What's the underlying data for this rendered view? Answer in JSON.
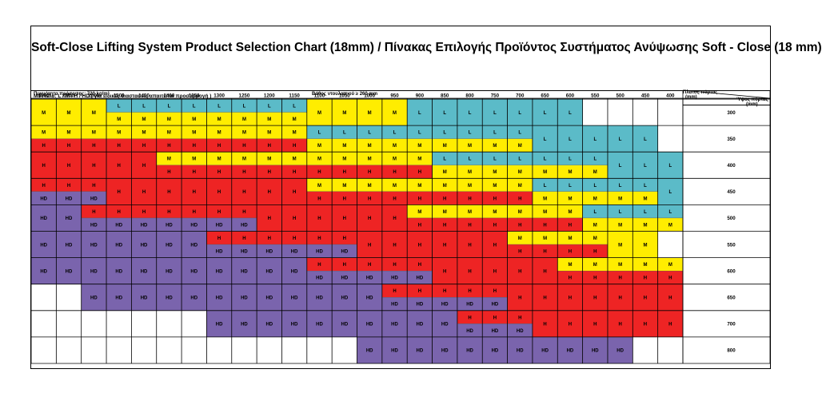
{
  "document": {
    "title": "Soft-Close Lifting System Product Selection Chart (18mm)  /  Πίνακας Επιλογής Προϊόντος Συστήματος Ανύψωσης Soft - Close (18 mm)",
    "models_note": "Μοντέλα: L / M / H / HD ( για ειδικές διαστασεις απαιτείται προσαρμογή )",
    "density_label": "Πυκνότητα πρόσοψης: 720 kg/m³",
    "depth_label": "Βάθος ντουλαπιού ≥ 260 mm",
    "width_label": "Πλατος πόρτας (mm)",
    "height_label": "Ύψος πόρτας (mm)",
    "width_label_line1": "Πλατος πόρτας",
    "width_label_line2": "(mm)",
    "height_label_line1": "Ύψος πόρτας",
    "height_label_line2": "(mm)"
  },
  "colors": {
    "L": "#5bbbc8",
    "M": "#ffed00",
    "H": "#ee2424",
    "HD": "#7a64ad",
    "empty": "#ffffff"
  },
  "chart_data": {
    "type": "table",
    "columns": [
      "1800",
      "1700",
      "1600",
      "1500",
      "1450",
      "1400",
      "1350",
      "1300",
      "1250",
      "1200",
      "1150",
      "1100",
      "1050",
      "1000",
      "950",
      "900",
      "850",
      "800",
      "750",
      "700",
      "650",
      "600",
      "550",
      "500",
      "450",
      "400"
    ],
    "rows": [
      "300",
      "350",
      "400",
      "450",
      "500",
      "550",
      "600",
      "650",
      "700",
      "800"
    ],
    "cells": [
      [
        "M",
        "M",
        "M",
        "L/M",
        "L/M",
        "L/M",
        "L/M",
        "L/M",
        "L/M",
        "L/M",
        "L/M",
        "M",
        "M",
        "M",
        "M",
        "L",
        "L",
        "L",
        "L",
        "L",
        "L",
        "L",
        "",
        "",
        "",
        ""
      ],
      [
        "M/H",
        "M/H",
        "M/H",
        "M/H",
        "M/H",
        "M/H",
        "M/H",
        "M/H",
        "M/H",
        "M/H",
        "M/H",
        "L/M",
        "L/M",
        "L/M",
        "L/M",
        "L/M",
        "L/M",
        "L/M",
        "L/M",
        "L/M",
        "L",
        "L",
        "L",
        "L",
        "L",
        ""
      ],
      [
        "H",
        "H",
        "H",
        "H",
        "H",
        "M/H",
        "M/H",
        "M/H",
        "M/H",
        "M/H",
        "M/H",
        "M/H",
        "M/H",
        "M/H",
        "M/H",
        "M/H",
        "L/M",
        "L/M",
        "L/M",
        "L/M",
        "L/M",
        "L/M",
        "L/M",
        "L",
        "L",
        "L"
      ],
      [
        "H/HD",
        "H/HD",
        "H/HD",
        "H",
        "H",
        "H",
        "H",
        "H",
        "H",
        "H",
        "H",
        "M/H",
        "M/H",
        "M/H",
        "M/H",
        "M/H",
        "M/H",
        "M/H",
        "M/H",
        "M/H",
        "L/M",
        "L/M",
        "L/M",
        "L/M",
        "L/M",
        "L"
      ],
      [
        "HD",
        "HD",
        "H/HD",
        "H/HD",
        "H/HD",
        "H/HD",
        "H/HD",
        "H/HD",
        "H/HD",
        "H",
        "H",
        "H",
        "H",
        "H",
        "H",
        "M/H",
        "M/H",
        "M/H",
        "M/H",
        "M/H",
        "M/H",
        "M/H",
        "L/M",
        "L/M",
        "L/M",
        "L/M"
      ],
      [
        "HD",
        "HD",
        "HD",
        "HD",
        "HD",
        "HD",
        "HD",
        "H/HD",
        "H/HD",
        "H/HD",
        "H/HD",
        "H/HD",
        "H/HD",
        "H",
        "H",
        "H",
        "H",
        "H",
        "H",
        "M/H",
        "M/H",
        "M/H",
        "M/H",
        "M",
        "M",
        ""
      ],
      [
        "HD",
        "HD",
        "HD",
        "HD",
        "HD",
        "HD",
        "HD",
        "HD",
        "HD",
        "HD",
        "HD",
        "H/HD",
        "H/HD",
        "H/HD",
        "H/HD",
        "H/HD",
        "H",
        "H",
        "H",
        "H",
        "H",
        "M/H",
        "M/H",
        "M/H",
        "M/H",
        "M/H"
      ],
      [
        "",
        "",
        "HD",
        "HD",
        "HD",
        "HD",
        "HD",
        "HD",
        "HD",
        "HD",
        "HD",
        "HD",
        "HD",
        "HD",
        "H/HD",
        "H/HD",
        "H/HD",
        "H/HD",
        "H/HD",
        "H",
        "H",
        "H",
        "H",
        "H",
        "H",
        "H"
      ],
      [
        "",
        "",
        "",
        "",
        "",
        "",
        "",
        "HD",
        "HD",
        "HD",
        "HD",
        "HD",
        "HD",
        "HD",
        "HD",
        "HD",
        "HD",
        "H/HD",
        "H/HD",
        "H/HD",
        "H",
        "H",
        "H",
        "H",
        "H",
        "H"
      ],
      [
        "",
        "",
        "",
        "",
        "",
        "",
        "",
        "",
        "",
        "",
        "",
        "",
        "",
        "HD",
        "HD",
        "HD",
        "HD",
        "HD",
        "HD",
        "HD",
        "HD",
        "HD",
        "HD",
        "HD",
        "",
        ""
      ]
    ]
  }
}
